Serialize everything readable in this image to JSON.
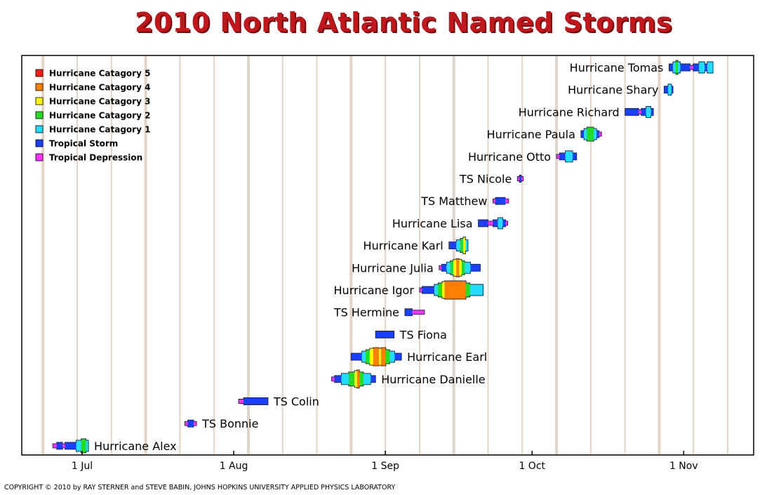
{
  "title": "2010 North Atlantic Named Storms",
  "copyright": "COPYRIGHT © 2010 by RAY STERNER and STEVE BABIN, JOHNS HOPKINS UNIVERSITY APPLIED PHYSICS LABORATORY",
  "colors": {
    "title": "#c0161c",
    "week_lines": "#e2d5c7",
    "Hurricane Catagory 5": "#ff1a1a",
    "Hurricane Catagory 4": "#ff8000",
    "Hurricane Catagory 3": "#ffff00",
    "Hurricane Catagory 2": "#22dd22",
    "Hurricane Catagory 1": "#22ddff",
    "Tropical Storm": "#1a40ff",
    "Tropical Depression": "#ff33ff"
  },
  "chart_data": {
    "type": "timeline",
    "year": 2010,
    "x_axis": {
      "tick_labels": [
        "1 Jul",
        "1 Aug",
        "1 Sep",
        "1 Oct",
        "1 Nov"
      ],
      "tick_dates": [
        "2010-07-01",
        "2010-08-01",
        "2010-09-01",
        "2010-10-01",
        "2010-11-01"
      ],
      "range": [
        "2010-06-21",
        "2010-11-10"
      ],
      "grid": "weekly vertical lines"
    },
    "legend": {
      "position": "top-left",
      "entries": [
        "Hurricane Catagory 5",
        "Hurricane Catagory 4",
        "Hurricane Catagory 3",
        "Hurricane Catagory 2",
        "Hurricane Catagory 1",
        "Tropical Storm",
        "Tropical Depression"
      ]
    },
    "storms": [
      {
        "name": "Hurricane Tomas",
        "label_side": "left",
        "start": "2010-10-29",
        "end": "2010-11-07",
        "segments": [
          [
            "TS",
            0.8
          ],
          [
            "H1",
            0.6
          ],
          [
            "H2",
            0.4
          ],
          [
            "H1",
            0.5
          ],
          [
            "TS",
            2.0
          ],
          [
            "TD",
            0.6
          ],
          [
            "TS",
            1.2
          ],
          [
            "H1",
            1.2
          ],
          [
            "TS",
            0.5
          ],
          [
            "H1",
            1.2
          ]
        ]
      },
      {
        "name": "Hurricane Shary",
        "label_side": "left",
        "start": "2010-10-28",
        "end": "2010-10-30",
        "segments": [
          [
            "TS",
            0.8
          ],
          [
            "H1",
            0.7
          ],
          [
            "TS",
            0.3
          ]
        ]
      },
      {
        "name": "Hurricane Richard",
        "label_side": "left",
        "start": "2010-10-20",
        "end": "2010-10-26",
        "segments": [
          [
            "TS",
            2.8
          ],
          [
            "TD",
            0.5
          ],
          [
            "TS",
            1.0
          ],
          [
            "H1",
            1.0
          ],
          [
            "TS",
            0.5
          ]
        ]
      },
      {
        "name": "Hurricane Paula",
        "label_side": "left",
        "start": "2010-10-11",
        "end": "2010-10-15",
        "segments": [
          [
            "TS",
            0.6
          ],
          [
            "H1",
            0.6
          ],
          [
            "H2",
            1.4
          ],
          [
            "H1",
            0.6
          ],
          [
            "TS",
            0.5
          ],
          [
            "TD",
            0.5
          ]
        ]
      },
      {
        "name": "Hurricane Otto",
        "label_side": "left",
        "start": "2010-10-06",
        "end": "2010-10-10",
        "segments": [
          [
            "TD",
            0.6
          ],
          [
            "TS",
            1.2
          ],
          [
            "H1",
            1.5
          ],
          [
            "TS",
            0.8
          ]
        ]
      },
      {
        "name": "TS Nicole",
        "label_side": "left",
        "start": "2010-09-28",
        "end": "2010-09-29",
        "segments": [
          [
            "TD",
            0.4
          ],
          [
            "TS",
            0.4
          ],
          [
            "TD",
            0.4
          ]
        ]
      },
      {
        "name": "TS Matthew",
        "label_side": "left",
        "start": "2010-09-23",
        "end": "2010-09-26",
        "segments": [
          [
            "TD",
            0.5
          ],
          [
            "TS",
            2.0
          ],
          [
            "TD",
            0.7
          ]
        ]
      },
      {
        "name": "Hurricane Lisa",
        "label_side": "left",
        "start": "2010-09-20",
        "end": "2010-09-26",
        "segments": [
          [
            "TS",
            2.0
          ],
          [
            "TD",
            1.0
          ],
          [
            "TS",
            1.0
          ],
          [
            "H1",
            1.0
          ],
          [
            "TS",
            0.6
          ],
          [
            "TD",
            0.4
          ]
        ]
      },
      {
        "name": "Hurricane Karl",
        "label_side": "left",
        "start": "2010-09-14",
        "end": "2010-09-18",
        "segments": [
          [
            "TS",
            1.5
          ],
          [
            "H1",
            0.8
          ],
          [
            "H2",
            0.6
          ],
          [
            "H3",
            0.5
          ],
          [
            "H1",
            0.5
          ]
        ]
      },
      {
        "name": "Hurricane Julia",
        "label_side": "left",
        "start": "2010-09-12",
        "end": "2010-09-20",
        "segments": [
          [
            "TD",
            0.5
          ],
          [
            "TS",
            1.0
          ],
          [
            "H1",
            0.8
          ],
          [
            "H2",
            0.6
          ],
          [
            "H3",
            0.6
          ],
          [
            "H4",
            0.6
          ],
          [
            "H3",
            0.5
          ],
          [
            "H2",
            0.6
          ],
          [
            "H1",
            1.2
          ],
          [
            "TS",
            2.0
          ]
        ]
      },
      {
        "name": "Hurricane Igor",
        "label_side": "left",
        "start": "2010-09-08",
        "end": "2010-09-21",
        "segments": [
          [
            "TD",
            0.5
          ],
          [
            "TS",
            2.5
          ],
          [
            "H1",
            0.8
          ],
          [
            "H2",
            0.8
          ],
          [
            "H3",
            0.5
          ],
          [
            "H4",
            4.4
          ],
          [
            "H2",
            0.8
          ],
          [
            "H1",
            2.7
          ]
        ]
      },
      {
        "name": "TS Hermine",
        "label_side": "left",
        "start": "2010-09-05",
        "end": "2010-09-09",
        "segments": [
          [
            "TS",
            1.5
          ],
          [
            "TD",
            2.5
          ]
        ]
      },
      {
        "name": "TS Fiona",
        "label_side": "right",
        "start": "2010-08-30",
        "end": "2010-09-03",
        "segments": [
          [
            "TS",
            3.8
          ]
        ]
      },
      {
        "name": "Hurricane Earl",
        "label_side": "right",
        "start": "2010-08-25",
        "end": "2010-09-04",
        "segments": [
          [
            "TS",
            2.2
          ],
          [
            "H1",
            0.8
          ],
          [
            "H2",
            0.8
          ],
          [
            "H3",
            0.7
          ],
          [
            "H4",
            1.2
          ],
          [
            "H3",
            0.4
          ],
          [
            "H4",
            1.0
          ],
          [
            "H2",
            0.8
          ],
          [
            "H1",
            1.0
          ],
          [
            "TS",
            1.4
          ]
        ]
      },
      {
        "name": "Hurricane Danielle",
        "label_side": "right",
        "start": "2010-08-21",
        "end": "2010-08-30",
        "segments": [
          [
            "TD",
            0.6
          ],
          [
            "TS",
            1.4
          ],
          [
            "H1",
            1.5
          ],
          [
            "H2",
            1.2
          ],
          [
            "H3",
            0.5
          ],
          [
            "H4",
            0.5
          ],
          [
            "H2",
            0.8
          ],
          [
            "H1",
            1.5
          ],
          [
            "TS",
            1.0
          ]
        ]
      },
      {
        "name": "TS Colin",
        "label_side": "right",
        "start": "2010-08-02",
        "end": "2010-08-08",
        "segments": [
          [
            "TD",
            1.0
          ],
          [
            "TS",
            5.0
          ]
        ]
      },
      {
        "name": "TS Bonnie",
        "label_side": "right",
        "start": "2010-07-22",
        "end": "2010-07-25",
        "segments": [
          [
            "TD",
            0.6
          ],
          [
            "TS",
            1.2
          ],
          [
            "TD",
            0.6
          ]
        ]
      },
      {
        "name": "Hurricane Alex",
        "label_side": "right",
        "start": "2010-06-25",
        "end": "2010-07-02",
        "segments": [
          [
            "TD",
            0.8
          ],
          [
            "TS",
            1.2
          ],
          [
            "TD",
            0.5
          ],
          [
            "TS",
            2.3
          ],
          [
            "H1",
            1.0
          ],
          [
            "H2",
            1.0
          ],
          [
            "H1",
            0.5
          ]
        ]
      }
    ]
  }
}
